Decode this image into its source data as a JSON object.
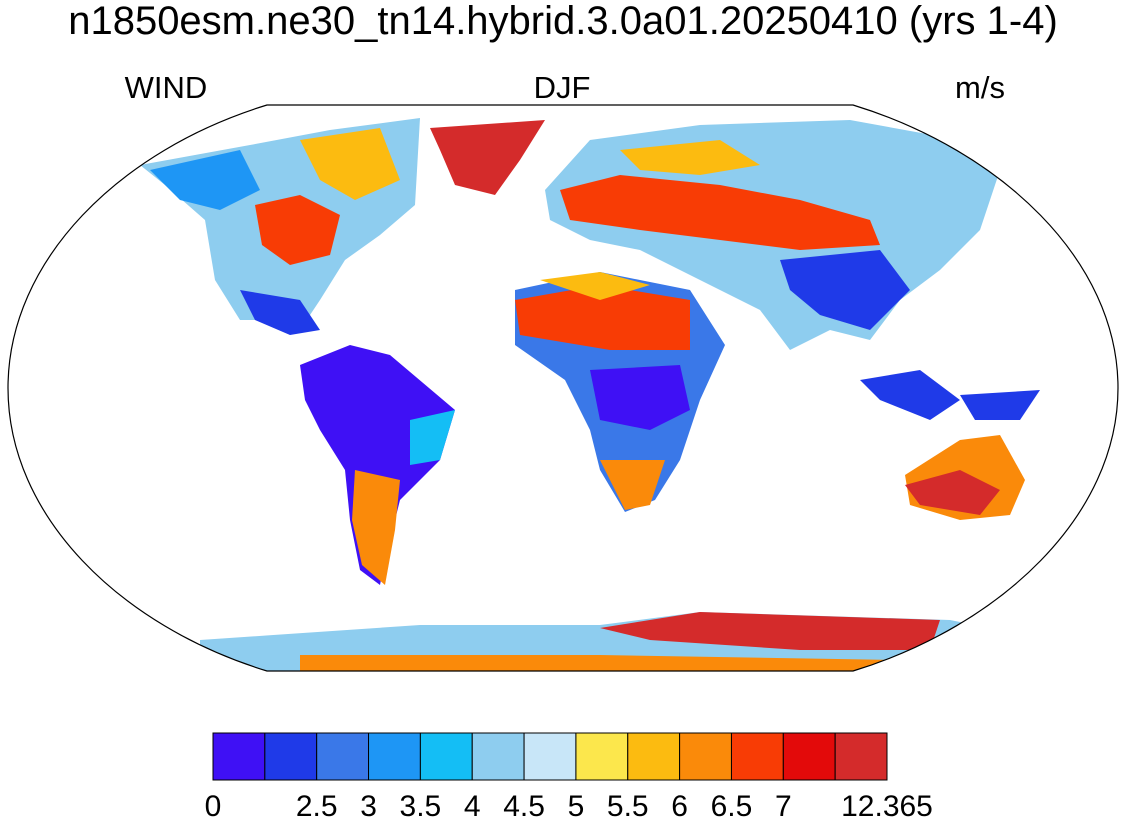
{
  "title": "n1850esm.ne30_tn14.hybrid.3.0a01.20250410 (yrs 1-4)",
  "left_string": "WIND",
  "center_string": "DJF",
  "right_string": "m/s",
  "colorbar": {
    "colors": [
      "#3f10f5",
      "#1f3ae8",
      "#3a78e8",
      "#1e96f5",
      "#14bef5",
      "#8ecdef",
      "#c8e6f8",
      "#fce74c",
      "#fcbb10",
      "#fa8a0a",
      "#f83c05",
      "#e30a0a",
      "#d42b2b"
    ],
    "levels": [
      0,
      null,
      2.5,
      3,
      3.5,
      4,
      4.5,
      5,
      5.5,
      6,
      6.5,
      7,
      null,
      12.365
    ]
  }
}
